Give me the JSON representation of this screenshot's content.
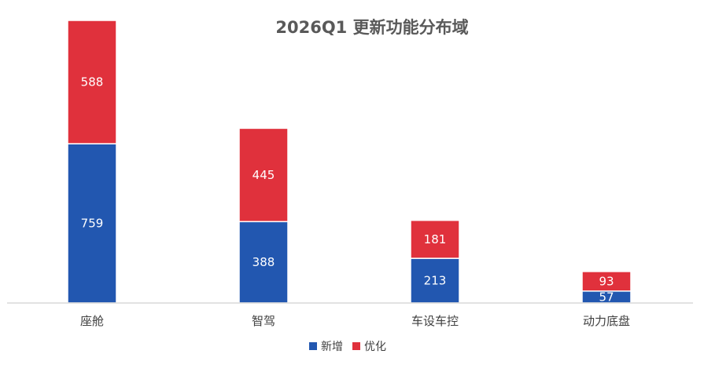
{
  "chart_data": {
    "type": "bar",
    "stacked": true,
    "title": "2026Q1 更新功能分布域",
    "categories": [
      "座舱",
      "智驾",
      "车设车控",
      "动力底盘"
    ],
    "series": [
      {
        "name": "新增",
        "color": "#2257B0",
        "values": [
          759,
          388,
          213,
          57
        ]
      },
      {
        "name": "优化",
        "color": "#E0313C",
        "values": [
          588,
          445,
          181,
          93
        ]
      }
    ],
    "data_labels": true,
    "legend_position": "bottom",
    "grid": false,
    "ylim": [
      0,
      1350
    ]
  }
}
